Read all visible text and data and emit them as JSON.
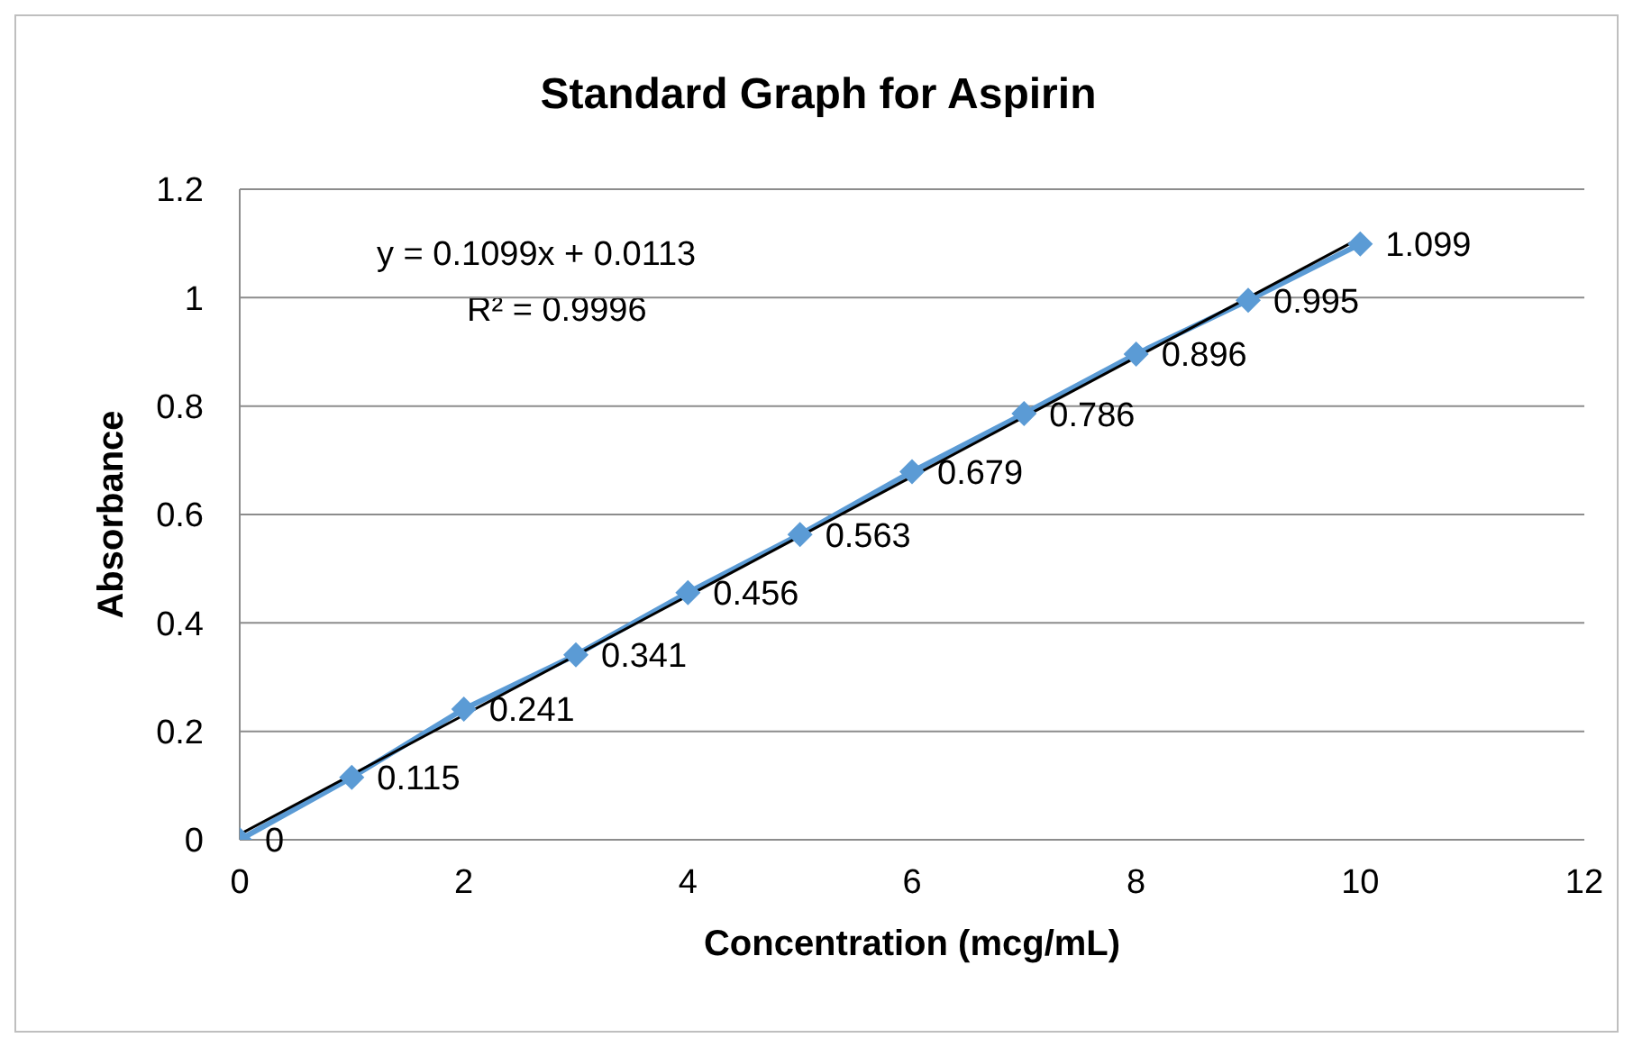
{
  "chart_data": {
    "type": "line",
    "title": "Standard Graph for Aspirin",
    "xlabel": "Concentration (mcg/mL)",
    "ylabel": "Absorbance",
    "x": [
      0,
      1,
      2,
      3,
      4,
      5,
      6,
      7,
      8,
      9,
      10
    ],
    "series": [
      {
        "color": "#5b9bd5",
        "values": [
          0,
          0.115,
          0.241,
          0.341,
          0.456,
          0.563,
          0.679,
          0.786,
          0.896,
          0.995,
          1.099
        ],
        "marker": "diamond",
        "data_labels": true
      },
      {
        "color": "#000000",
        "x": [
          0,
          10
        ],
        "values": [
          0.01,
          1.11
        ],
        "marker": "none"
      }
    ],
    "annotations": [
      "y = 0.1099x + 0.0113",
      "R² = 0.9996"
    ],
    "xlim": [
      0,
      12
    ],
    "xticks": [
      0,
      2,
      4,
      6,
      8,
      10,
      12
    ],
    "ylim": [
      0,
      1.2
    ],
    "yticks": [
      0,
      0.2,
      0.4,
      0.6,
      0.8,
      1,
      1.2
    ],
    "grid": "y"
  }
}
